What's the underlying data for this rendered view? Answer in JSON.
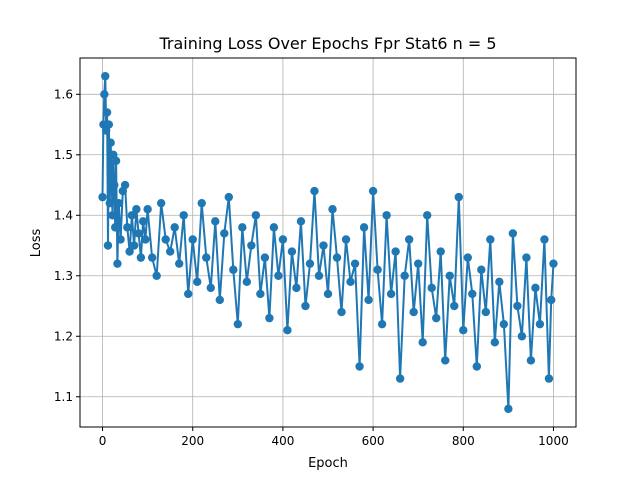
{
  "chart_data": {
    "type": "line",
    "title": "Training Loss Over Epochs Fpr Stat6 n = 5",
    "xlabel": "Epoch",
    "ylabel": "Loss",
    "xlim": [
      -50,
      1050
    ],
    "ylim": [
      1.05,
      1.66
    ],
    "xticks": [
      0,
      200,
      400,
      600,
      800,
      1000
    ],
    "yticks": [
      1.1,
      1.2,
      1.3,
      1.4,
      1.5,
      1.6
    ],
    "grid": true,
    "color": "#1f77b4",
    "marker": "circle",
    "series": [
      {
        "x": [
          0,
          2,
          4,
          6,
          8,
          10,
          12,
          14,
          16,
          18,
          20,
          22,
          24,
          26,
          28,
          30,
          33,
          36,
          40,
          45,
          50,
          55,
          60,
          65,
          70,
          75,
          80,
          85,
          90,
          95,
          100,
          110,
          120,
          130,
          140,
          150,
          160,
          170,
          180,
          190,
          200,
          210,
          220,
          230,
          240,
          250,
          260,
          270,
          280,
          290,
          300,
          310,
          320,
          330,
          340,
          350,
          360,
          370,
          380,
          390,
          400,
          410,
          420,
          430,
          440,
          450,
          460,
          470,
          480,
          490,
          500,
          510,
          520,
          530,
          540,
          550,
          560,
          570,
          580,
          590,
          600,
          610,
          620,
          630,
          640,
          650,
          660,
          670,
          680,
          690,
          700,
          710,
          720,
          730,
          740,
          750,
          760,
          770,
          780,
          790,
          800,
          810,
          820,
          830,
          840,
          850,
          860,
          870,
          880,
          890,
          900,
          910,
          920,
          930,
          940,
          950,
          960,
          970,
          980,
          990,
          995,
          1000
        ],
        "y": [
          1.43,
          1.55,
          1.6,
          1.63,
          1.54,
          1.57,
          1.35,
          1.55,
          1.42,
          1.52,
          1.46,
          1.4,
          1.5,
          1.45,
          1.38,
          1.49,
          1.32,
          1.42,
          1.36,
          1.44,
          1.45,
          1.38,
          1.34,
          1.4,
          1.35,
          1.41,
          1.37,
          1.33,
          1.39,
          1.36,
          1.41,
          1.33,
          1.3,
          1.42,
          1.36,
          1.34,
          1.38,
          1.32,
          1.4,
          1.27,
          1.36,
          1.29,
          1.42,
          1.33,
          1.28,
          1.39,
          1.26,
          1.37,
          1.43,
          1.31,
          1.22,
          1.38,
          1.29,
          1.35,
          1.4,
          1.27,
          1.33,
          1.23,
          1.38,
          1.3,
          1.36,
          1.21,
          1.34,
          1.28,
          1.39,
          1.25,
          1.32,
          1.44,
          1.3,
          1.35,
          1.27,
          1.41,
          1.33,
          1.24,
          1.36,
          1.29,
          1.32,
          1.15,
          1.38,
          1.26,
          1.44,
          1.31,
          1.22,
          1.4,
          1.27,
          1.34,
          1.13,
          1.3,
          1.36,
          1.24,
          1.32,
          1.19,
          1.4,
          1.28,
          1.23,
          1.34,
          1.16,
          1.3,
          1.25,
          1.43,
          1.21,
          1.33,
          1.27,
          1.15,
          1.31,
          1.24,
          1.36,
          1.19,
          1.29,
          1.22,
          1.08,
          1.37,
          1.25,
          1.2,
          1.33,
          1.16,
          1.28,
          1.22,
          1.36,
          1.13,
          1.26,
          1.32
        ]
      }
    ]
  }
}
